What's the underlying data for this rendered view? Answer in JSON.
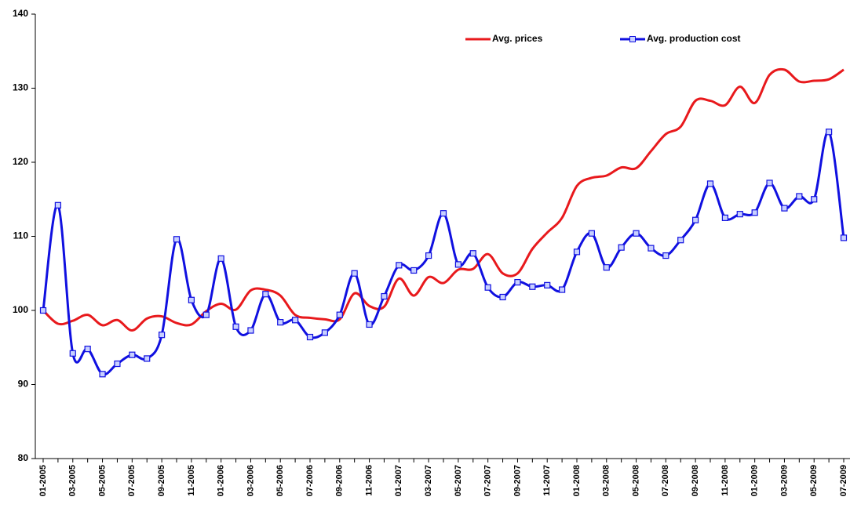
{
  "chart_data": {
    "type": "line",
    "categories": [
      "01-2005",
      null,
      "03-2005",
      null,
      "05-2005",
      null,
      "07-2005",
      null,
      "09-2005",
      null,
      "11-2005",
      null,
      "01-2006",
      null,
      "03-2006",
      null,
      "05-2006",
      null,
      "07-2006",
      null,
      "09-2006",
      null,
      "11-2006",
      null,
      "01-2007",
      null,
      "03-2007",
      null,
      "05-2007",
      null,
      "07-2007",
      null,
      "09-2007",
      null,
      "11-2007",
      null,
      "01-2008",
      null,
      "03-2008",
      null,
      "05-2008",
      null,
      "07-2008",
      null,
      "09-2008",
      null,
      "11-2008",
      null,
      "01-2009",
      null,
      "03-2009",
      null,
      "05-2009",
      null,
      "07-2009"
    ],
    "series": [
      {
        "name": "Avg. prices",
        "color": "#e8191c",
        "smooth": true,
        "marker": false,
        "values": [
          100,
          98.2,
          98.6,
          99.4,
          98.0,
          98.7,
          97.3,
          98.9,
          99.2,
          98.3,
          98.1,
          99.9,
          100.9,
          100.1,
          102.7,
          102.8,
          102.0,
          99.4,
          99.0,
          98.8,
          98.8,
          102.3,
          100.6,
          100.5,
          104.3,
          102.0,
          104.5,
          103.7,
          105.5,
          105.6,
          107.6,
          105.0,
          105.0,
          108.3,
          110.5,
          112.5,
          116.8,
          117.9,
          118.2,
          119.3,
          119.2,
          121.5,
          123.8,
          124.8,
          128.3,
          128.3,
          127.7,
          130.2,
          128.0,
          131.8,
          132.5,
          130.9,
          131.0,
          131.2,
          132.5
        ]
      },
      {
        "name": "Avg. production cost",
        "color": "#1010e0",
        "smooth": true,
        "marker": true,
        "values": [
          100,
          114.2,
          94.2,
          94.8,
          91.4,
          92.8,
          94.0,
          93.5,
          96.7,
          109.6,
          101.4,
          99.4,
          107.0,
          97.8,
          97.3,
          102.2,
          98.4,
          98.7,
          96.4,
          97.0,
          99.4,
          105.0,
          98.1,
          101.9,
          106.1,
          105.4,
          107.4,
          113.1,
          106.2,
          107.7,
          103.1,
          101.8,
          103.8,
          103.2,
          103.4,
          102.8,
          107.9,
          110.4,
          105.8,
          108.5,
          110.4,
          108.4,
          107.4,
          109.5,
          112.2,
          117.1,
          112.5,
          113.0,
          113.2,
          117.2,
          113.8,
          115.4,
          115.0,
          124.1,
          109.8
        ]
      }
    ],
    "ylim": [
      80,
      140
    ],
    "yticks": [
      80,
      90,
      100,
      110,
      120,
      130,
      140
    ],
    "grid": false,
    "legend": "top-right"
  }
}
